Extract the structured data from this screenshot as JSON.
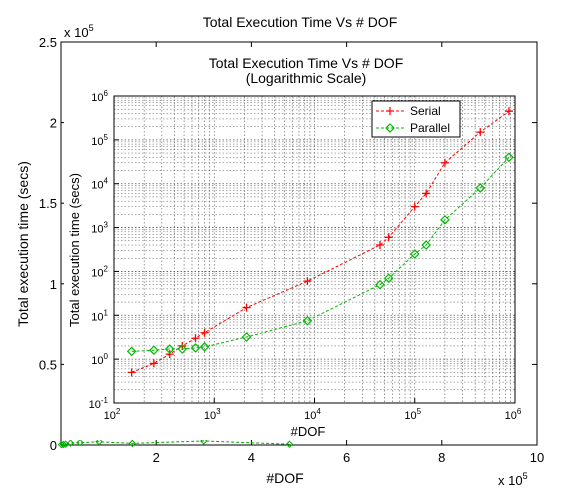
{
  "chart_data": [
    {
      "type": "line",
      "title": "Total Execution Time Vs # DOF",
      "xlabel": "#DOF",
      "ylabel": "Total execution time (secs)",
      "x_exponent_label": "x 10",
      "x_exponent": "5",
      "y_exponent_label": "x 10",
      "y_exponent": "5",
      "xlim": [
        0,
        1000000
      ],
      "ylim": [
        0,
        250000
      ],
      "x_ticks": [
        200000,
        400000,
        600000,
        800000,
        1000000
      ],
      "x_tick_labels": [
        "2",
        "4",
        "6",
        "8",
        "10"
      ],
      "y_ticks": [
        0,
        50000,
        100000,
        150000,
        200000,
        250000
      ],
      "y_tick_labels": [
        "0",
        "0.5",
        "1",
        "1.5",
        "2",
        "2.5"
      ],
      "grid": false,
      "series": [
        {
          "color": "#00aa00",
          "x": [
            1000,
            5000,
            10000,
            20000,
            40000,
            80000,
            150000,
            300000,
            480000
          ],
          "y": [
            200,
            300,
            500,
            1200,
            1500,
            2000,
            1000,
            2500,
            500
          ]
        }
      ]
    },
    {
      "type": "line",
      "title": "Total Execution Time Vs # DOF",
      "subtitle": "(Logarithmic Scale)",
      "xlabel": "#DOF",
      "ylabel": "Total execution time (secs)",
      "x_scale": "log",
      "y_scale": "log",
      "xlim": [
        100,
        1000000
      ],
      "ylim": [
        0.1,
        1000000
      ],
      "x_ticks": [
        100,
        1000,
        10000,
        100000,
        1000000
      ],
      "x_tick_base": [
        "10",
        "10",
        "10",
        "10",
        "10"
      ],
      "x_tick_exp": [
        "2",
        "3",
        "4",
        "5",
        "6"
      ],
      "y_ticks": [
        0.1,
        1,
        10,
        100,
        1000,
        10000,
        100000,
        1000000
      ],
      "y_tick_base": [
        "10",
        "10",
        "10",
        "10",
        "10",
        "10",
        "10",
        "10"
      ],
      "y_tick_exp": [
        "-1",
        "0",
        "1",
        "2",
        "3",
        "4",
        "5",
        "6"
      ],
      "grid": true,
      "legend_position": "top-right",
      "series": [
        {
          "name": "Serial",
          "color": "#ff0000",
          "marker": "plus",
          "x": [
            150,
            250,
            360,
            480,
            650,
            800,
            2100,
            8500,
            45000,
            55000,
            100000,
            130000,
            200000,
            450000,
            870000
          ],
          "y": [
            0.5,
            0.8,
            1.3,
            2.0,
            3.0,
            4.0,
            15,
            60,
            400,
            600,
            3000,
            6000,
            30000,
            150000,
            450000
          ]
        },
        {
          "name": "Parallel",
          "color": "#00bb00",
          "marker": "diamond",
          "x": [
            150,
            250,
            360,
            480,
            650,
            800,
            2100,
            8500,
            45000,
            55000,
            100000,
            130000,
            200000,
            450000,
            870000
          ],
          "y": [
            1.5,
            1.6,
            1.7,
            1.7,
            1.8,
            1.9,
            3.2,
            7.5,
            50,
            70,
            250,
            400,
            1500,
            8000,
            40000
          ]
        }
      ]
    }
  ]
}
